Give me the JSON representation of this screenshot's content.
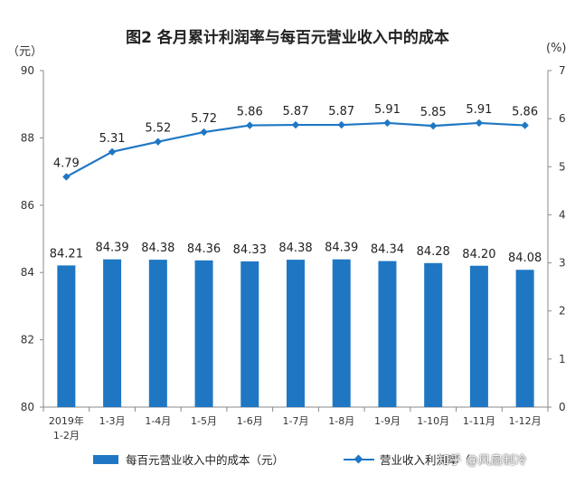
{
  "chart_data": {
    "type": "bar+line",
    "title": "图2  各月累计利润率与每百元营业收入中的成本",
    "left_unit": "（元）",
    "right_unit": "(%)",
    "categories": [
      "2019年\n1-2月",
      "1-3月",
      "1-4月",
      "1-5月",
      "1-6月",
      "1-7月",
      "1-8月",
      "1-9月",
      "1-10月",
      "1-11月",
      "1-12月"
    ],
    "bar_series": {
      "name": "每百元营业收入中的成本（元）",
      "values": [
        84.21,
        84.39,
        84.38,
        84.36,
        84.33,
        84.38,
        84.39,
        84.34,
        84.28,
        84.2,
        84.08
      ],
      "labels": [
        "84.21",
        "84.39",
        "84.38",
        "84.36",
        "84.33",
        "84.38",
        "84.39",
        "84.34",
        "84.28",
        "84.20",
        "84.08"
      ],
      "color": "#1f77c4",
      "axis": "left"
    },
    "line_series": {
      "name": "营业收入利润率（",
      "values": [
        4.79,
        5.31,
        5.52,
        5.72,
        5.86,
        5.87,
        5.87,
        5.91,
        5.85,
        5.91,
        5.86
      ],
      "labels": [
        "4.79",
        "5.31",
        "5.52",
        "5.72",
        "5.86",
        "5.87",
        "5.87",
        "5.91",
        "5.85",
        "5.91",
        "5.86"
      ],
      "color": "#1f77c4",
      "axis": "right"
    },
    "y_left": {
      "min": 80,
      "max": 90,
      "ticks": [
        "80",
        "82",
        "84",
        "86",
        "88",
        "90"
      ]
    },
    "y_right": {
      "min": 0,
      "max": 7,
      "ticks": [
        "0",
        "1",
        "2",
        "3",
        "4",
        "5",
        "6",
        "7"
      ]
    },
    "grid": false,
    "legend_position": "bottom"
  },
  "watermark": "知乎 @风扇制冷"
}
